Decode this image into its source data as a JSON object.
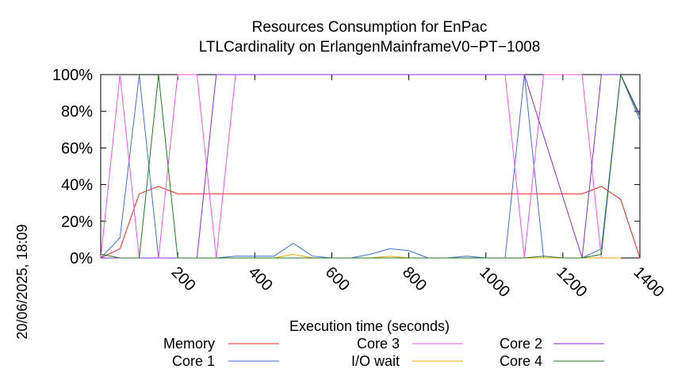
{
  "chart_data": {
    "type": "line",
    "title": "Resources Consumption for EnPac",
    "subtitle": "LTLCardinality on ErlangenMainframeV0−PT−1008",
    "xlabel": "Execution time (seconds)",
    "ylabel": "",
    "timestamp": "20/06/2025, 18:09",
    "xlim": [
      0,
      1400
    ],
    "ylim": [
      0,
      100
    ],
    "x_ticks": [
      200,
      400,
      600,
      800,
      1000,
      1200,
      1400
    ],
    "y_ticks": [
      {
        "value": 0,
        "label": "0%"
      },
      {
        "value": 20,
        "label": "20%"
      },
      {
        "value": 40,
        "label": "40%"
      },
      {
        "value": 60,
        "label": "60%"
      },
      {
        "value": 80,
        "label": "80%"
      },
      {
        "value": 100,
        "label": "100%"
      }
    ],
    "grid": false,
    "legend_position": "bottom",
    "series": [
      {
        "name": "Memory",
        "color": "#e8241a",
        "x": [
          0,
          50,
          100,
          150,
          200,
          250,
          1250,
          1300,
          1350,
          1400
        ],
        "y": [
          0,
          5,
          35,
          39,
          35,
          35,
          35,
          39,
          32,
          0
        ]
      },
      {
        "name": "Core 1",
        "color": "#3f6fd8",
        "x": [
          0,
          50,
          100,
          150,
          200,
          250,
          300,
          350,
          400,
          450,
          500,
          550,
          600,
          650,
          700,
          750,
          800,
          850,
          900,
          950,
          1000,
          1050,
          1100,
          1150,
          1200,
          1250,
          1300,
          1350,
          1400
        ],
        "y": [
          0,
          11,
          100,
          0,
          0,
          0,
          0,
          1,
          1,
          1,
          8,
          1,
          0,
          0,
          2,
          5,
          4,
          0,
          0,
          1,
          0,
          0,
          100,
          0,
          0,
          0,
          5,
          100,
          75
        ]
      },
      {
        "name": "Core 3",
        "color": "#ee55ee",
        "x": [
          0,
          50,
          100,
          150,
          200,
          250,
          300,
          350,
          1000,
          1050,
          1100,
          1150,
          1250,
          1300
        ],
        "y": [
          0,
          100,
          0,
          0,
          100,
          100,
          0,
          100,
          100,
          100,
          0,
          100,
          100,
          0
        ]
      },
      {
        "name": "I/O wait",
        "color": "#f0a800",
        "x": [
          0,
          450,
          500,
          550,
          700,
          750,
          800,
          1300,
          1350
        ],
        "y": [
          0,
          0,
          2,
          0,
          0,
          1,
          0,
          0,
          0
        ]
      },
      {
        "name": "Core 2",
        "color": "#8a2be2",
        "x": [
          0,
          50,
          200,
          250,
          300,
          350,
          400,
          1000,
          1050,
          1100,
          1250,
          1300,
          1350,
          1400
        ],
        "y": [
          0,
          0,
          0,
          0,
          100,
          100,
          100,
          100,
          100,
          100,
          0,
          100,
          100,
          78
        ]
      },
      {
        "name": "Core 4",
        "color": "#1f7a1f",
        "x": [
          0,
          50,
          100,
          150,
          200,
          1100,
          1150,
          1200,
          1250,
          1300,
          1350,
          1400
        ],
        "y": [
          2,
          0,
          0,
          100,
          0,
          0,
          1,
          0,
          0,
          2,
          100,
          77
        ]
      }
    ]
  }
}
